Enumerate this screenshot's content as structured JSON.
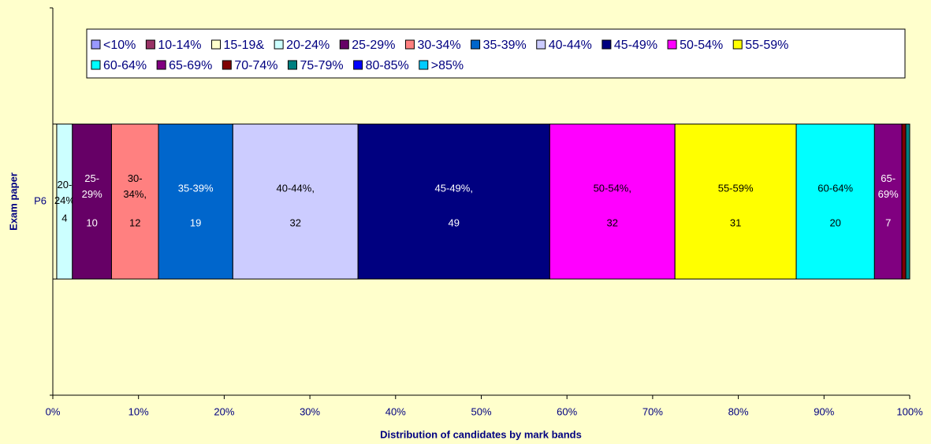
{
  "chart_data": {
    "type": "bar",
    "orientation": "horizontal",
    "stacking": "percent",
    "x_label": "Distribution of candidates by mark bands",
    "y_label": "Exam paper",
    "categories": [
      "P6"
    ],
    "xlim": [
      0,
      100
    ],
    "xticks": [
      {
        "value": 0,
        "label": "0%"
      },
      {
        "value": 10,
        "label": "10%"
      },
      {
        "value": 20,
        "label": "20%"
      },
      {
        "value": 30,
        "label": "30%"
      },
      {
        "value": 40,
        "label": "40%"
      },
      {
        "value": 50,
        "label": "50%"
      },
      {
        "value": 60,
        "label": "60%"
      },
      {
        "value": 70,
        "label": "70%"
      },
      {
        "value": 80,
        "label": "80%"
      },
      {
        "value": 90,
        "label": "90%"
      },
      {
        "value": 100,
        "label": "100%"
      }
    ],
    "legend": "top",
    "series": [
      {
        "name": "<10%",
        "color": "#9999ff",
        "values": [
          0
        ]
      },
      {
        "name": "10-14%",
        "color": "#993366",
        "values": [
          0
        ]
      },
      {
        "name": "15-19&",
        "color": "#ffffcc",
        "values": [
          1
        ]
      },
      {
        "name": "20-24%",
        "color": "#ccffff",
        "values": [
          4
        ],
        "data_label": "20-24%"
      },
      {
        "name": "25-29%",
        "color": "#660066",
        "values": [
          10
        ],
        "data_label": "25-29%"
      },
      {
        "name": "30-34%",
        "color": "#ff8080",
        "values": [
          12
        ],
        "data_label": "30-34%,"
      },
      {
        "name": "35-39%",
        "color": "#0066cc",
        "values": [
          19
        ],
        "data_label": "35-39%"
      },
      {
        "name": "40-44%",
        "color": "#ccccff",
        "values": [
          32
        ],
        "data_label": "40-44%,"
      },
      {
        "name": "45-49%",
        "color": "#000080",
        "values": [
          49
        ],
        "data_label": "45-49%,"
      },
      {
        "name": "50-54%",
        "color": "#ff00ff",
        "values": [
          32
        ],
        "data_label": "50-54%,"
      },
      {
        "name": "55-59%",
        "color": "#ffff00",
        "values": [
          31
        ],
        "data_label": "55-59%"
      },
      {
        "name": "60-64%",
        "color": "#00ffff",
        "values": [
          20
        ],
        "data_label": "60-64%"
      },
      {
        "name": "65-69%",
        "color": "#800080",
        "values": [
          7
        ],
        "data_label": "65-69%"
      },
      {
        "name": "70-74%",
        "color": "#800000",
        "values": [
          1
        ]
      },
      {
        "name": "75-79%",
        "color": "#008080",
        "values": [
          1
        ]
      },
      {
        "name": "80-85%",
        "color": "#0000ff",
        "values": [
          0
        ]
      },
      {
        "name": ">85%",
        "color": "#00ccff",
        "values": [
          0
        ]
      }
    ]
  }
}
